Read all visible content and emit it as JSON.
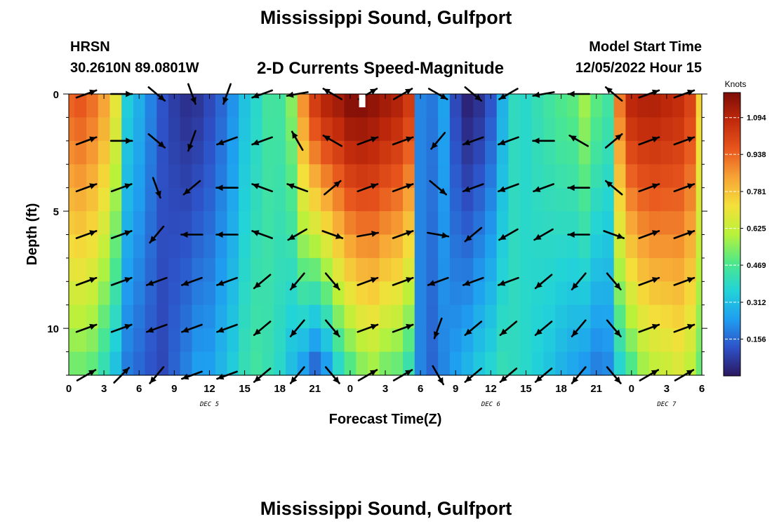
{
  "header": {
    "title": "Mississippi Sound, Gulfport",
    "station": "HRSN",
    "coords": "30.2610N  89.0801W",
    "subtitle": "2-D Currents Speed-Magnitude",
    "model_label": "Model Start Time",
    "model_time": "12/05/2022 Hour 15"
  },
  "footer": {
    "title": "Mississippi Sound, Gulfport"
  },
  "chart_data": {
    "type": "heatmap",
    "title": "2-D Currents Speed-Magnitude",
    "xlabel": "Forecast Time(Z)",
    "ylabel": "Depth (ft)",
    "x_tick_labels": [
      "0",
      "3",
      "6",
      "9",
      "12",
      "15",
      "18",
      "21",
      "0",
      "3",
      "6",
      "9",
      "12",
      "15",
      "18",
      "21",
      "0",
      "3",
      "6"
    ],
    "x_range_hours": [
      0,
      54
    ],
    "date_labels": [
      {
        "text": "DEC 5",
        "hour": 12
      },
      {
        "text": "DEC 6",
        "hour": 36
      },
      {
        "text": "DEC 7",
        "hour": 51
      }
    ],
    "y_tick_labels": [
      "0",
      "5",
      "10"
    ],
    "y_ticks": [
      0,
      5,
      10
    ],
    "y_range": [
      0,
      12
    ],
    "y_inverted": true,
    "colorbar": {
      "label": "Knots",
      "ticks": [
        "1.094",
        "0.938",
        "0.781",
        "0.625",
        "0.469",
        "0.312",
        "0.156"
      ],
      "tick_values": [
        1.094,
        0.938,
        0.781,
        0.625,
        0.469,
        0.312,
        0.156
      ],
      "range": [
        0,
        1.2
      ],
      "colors": [
        "#2b1760",
        "#2e52c8",
        "#1f9ef0",
        "#22d3d8",
        "#4ee88a",
        "#b8f23a",
        "#f4e03a",
        "#f7a436",
        "#e8561d",
        "#c12a0b",
        "#7d0c07"
      ]
    },
    "profile_hours": [
      0,
      1,
      2,
      3,
      4,
      5,
      6,
      7,
      8,
      9,
      10,
      11,
      12,
      13,
      14,
      15,
      16,
      17,
      18,
      19,
      20,
      21,
      22,
      23,
      24,
      25,
      26,
      27,
      28,
      29,
      30,
      31,
      32,
      33,
      34,
      35,
      36,
      37,
      38,
      39,
      40,
      41,
      42,
      43,
      44,
      45,
      46,
      47,
      48,
      49,
      50,
      51,
      52,
      53,
      54
    ],
    "surface_speed": [
      0.95,
      0.97,
      0.93,
      0.85,
      0.7,
      0.35,
      0.28,
      0.2,
      0.12,
      0.08,
      0.05,
      0.06,
      0.1,
      0.15,
      0.22,
      0.32,
      0.38,
      0.45,
      0.45,
      0.55,
      0.88,
      1.05,
      1.12,
      1.15,
      1.2,
      1.2,
      1.18,
      1.15,
      1.12,
      1.05,
      0.2,
      0.18,
      0.25,
      0.1,
      0.02,
      0.05,
      0.12,
      0.28,
      0.4,
      0.38,
      0.42,
      0.45,
      0.48,
      0.5,
      0.58,
      0.5,
      0.45,
      0.92,
      1.1,
      1.12,
      1.12,
      1.1,
      1.08,
      1.02,
      0.75
    ],
    "bottom_speed": [
      0.5,
      0.5,
      0.48,
      0.4,
      0.3,
      0.18,
      0.15,
      0.12,
      0.1,
      0.15,
      0.2,
      0.25,
      0.25,
      0.3,
      0.35,
      0.42,
      0.45,
      0.42,
      0.38,
      0.3,
      0.22,
      0.12,
      0.2,
      0.35,
      0.45,
      0.52,
      0.55,
      0.5,
      0.48,
      0.4,
      0.2,
      0.15,
      0.2,
      0.25,
      0.3,
      0.35,
      0.38,
      0.42,
      0.4,
      0.38,
      0.35,
      0.32,
      0.28,
      0.25,
      0.22,
      0.18,
      0.2,
      0.35,
      0.45,
      0.55,
      0.6,
      0.62,
      0.65,
      0.6,
      0.5
    ],
    "vectors": {
      "hours": [
        1.5,
        4.5,
        7.5,
        10.5,
        13.5,
        16.5,
        19.5,
        22.5,
        25.5,
        28.5,
        31.5,
        34.5,
        37.5,
        40.5,
        43.5,
        46.5,
        49.5,
        52.5
      ],
      "depths": [
        0,
        2,
        4,
        6,
        8,
        10,
        12
      ],
      "direction_deg": [
        [
          70,
          90,
          130,
          160,
          200,
          250,
          260,
          300,
          60,
          60,
          120,
          130,
          240,
          260,
          270,
          310,
          70,
          70
        ],
        [
          70,
          90,
          130,
          200,
          250,
          250,
          330,
          300,
          70,
          70,
          220,
          250,
          250,
          270,
          300,
          50,
          70,
          70
        ],
        [
          70,
          70,
          160,
          230,
          270,
          290,
          290,
          50,
          70,
          70,
          130,
          250,
          250,
          250,
          270,
          310,
          70,
          70
        ],
        [
          70,
          70,
          220,
          270,
          270,
          290,
          240,
          110,
          80,
          70,
          100,
          230,
          240,
          240,
          270,
          110,
          70,
          70
        ],
        [
          70,
          70,
          250,
          250,
          250,
          230,
          220,
          140,
          70,
          70,
          250,
          250,
          250,
          230,
          220,
          140,
          70,
          70
        ],
        [
          70,
          70,
          250,
          250,
          250,
          230,
          220,
          140,
          70,
          70,
          200,
          230,
          230,
          230,
          220,
          140,
          70,
          70
        ],
        [
          60,
          45,
          220,
          250,
          250,
          230,
          220,
          140,
          60,
          60,
          150,
          230,
          230,
          230,
          220,
          140,
          60,
          60
        ]
      ]
    }
  }
}
